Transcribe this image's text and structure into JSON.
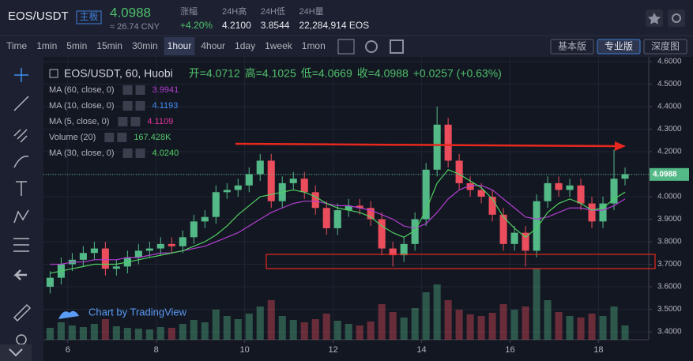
{
  "header": {
    "symbol": "EOS/USDT",
    "badge": "主板",
    "price": "4.0988",
    "cny": "≈ 26.74 CNY",
    "stats": [
      {
        "label": "涨幅",
        "value": "+4.20%"
      },
      {
        "label": "24H高",
        "value": "4.2100"
      },
      {
        "label": "24H低",
        "value": "3.8544"
      },
      {
        "label": "24H量",
        "value": "22,284,914 EOS"
      }
    ]
  },
  "toolbar": {
    "intervals": [
      "Time",
      "1min",
      "5min",
      "15min",
      "30min",
      "1hour",
      "4hour",
      "1day",
      "1week",
      "1mon"
    ],
    "active": "1hour",
    "versions": [
      "基本版",
      "专业版",
      "深度图"
    ],
    "active_version": "专业版"
  },
  "chart_data": {
    "type": "candlestick",
    "title": "EOS/USDT, 60, Huobi",
    "ohlc": [
      "开=4.0712",
      "高=4.1025",
      "低=4.0669",
      "收=4.0988"
    ],
    "change": "+0.0257 (+0.63%)",
    "indicators": [
      {
        "name": "MA (60, close, 0)",
        "value": "3.9941",
        "color": "#b23fd0"
      },
      {
        "name": "MA (10, close, 0)",
        "value": "4.1193",
        "color": "#3f8ef0"
      },
      {
        "name": "MA (5, close, 0)",
        "value": "4.1109",
        "color": "#e0359a"
      },
      {
        "name": "Volume (20)",
        "value": "167.428K",
        "color": "#56c66c"
      },
      {
        "name": "MA (30, close, 0)",
        "value": "4.0240",
        "color": "#4fd060"
      }
    ],
    "watermark": "Chart by TradingView",
    "last_price": "4.0988",
    "xlim": [
      5.45,
      19.1
    ],
    "xticks": [
      6,
      8,
      10,
      12,
      14,
      16,
      18
    ],
    "ylim": [
      3.365,
      4.621
    ],
    "yticks": [
      {
        "value": 4.6,
        "label": "4.6000"
      },
      {
        "value": 4.5,
        "label": "4.5000"
      },
      {
        "value": 4.4,
        "label": "4.4000"
      },
      {
        "value": 4.3,
        "label": "4.3000"
      },
      {
        "value": 4.2,
        "label": "4.2000"
      },
      {
        "value": 4.1,
        "label": "4.1000"
      },
      {
        "value": 4.0,
        "label": "4.0000"
      },
      {
        "value": 3.9,
        "label": "3.9000"
      },
      {
        "value": 3.8,
        "label": "3.8000"
      },
      {
        "value": 3.7,
        "label": "3.7000"
      },
      {
        "value": 3.6,
        "label": "3.6000"
      },
      {
        "value": 3.5,
        "label": "3.5000"
      },
      {
        "value": 3.4,
        "label": "3.4000"
      }
    ],
    "up_color": "#53b987",
    "down_color": "#eb4d5c",
    "x": [
      5.6,
      5.85,
      6.1,
      6.35,
      6.6,
      6.85,
      7.1,
      7.35,
      7.6,
      7.85,
      8.1,
      8.35,
      8.6,
      8.85,
      9.1,
      9.35,
      9.6,
      9.85,
      10.1,
      10.35,
      10.6,
      10.85,
      11.1,
      11.35,
      11.6,
      11.85,
      12.1,
      12.35,
      12.6,
      12.85,
      13.1,
      13.35,
      13.6,
      13.85,
      14.1,
      14.35,
      14.6,
      14.85,
      15.1,
      15.35,
      15.6,
      15.85,
      16.1,
      16.35,
      16.6,
      16.85,
      17.1,
      17.35,
      17.6,
      17.85,
      18.1,
      18.35,
      18.6
    ],
    "open": [
      3.6,
      3.64,
      3.7,
      3.72,
      3.75,
      3.77,
      3.68,
      3.69,
      3.73,
      3.76,
      3.77,
      3.79,
      3.78,
      3.82,
      3.89,
      3.91,
      4.02,
      4.03,
      4.05,
      4.1,
      4.16,
      3.98,
      4.06,
      4.08,
      4.02,
      3.95,
      3.86,
      3.94,
      3.96,
      3.95,
      3.9,
      3.77,
      3.74,
      3.79,
      3.9,
      4.12,
      4.32,
      4.16,
      4.06,
      4.03,
      4.0,
      3.92,
      3.79,
      3.84,
      3.76,
      3.98,
      4.06,
      4.03,
      4.05,
      3.97,
      3.89,
      3.97,
      4.08
    ],
    "high": [
      3.67,
      3.73,
      3.75,
      3.78,
      3.8,
      3.8,
      3.72,
      3.76,
      3.79,
      3.8,
      3.82,
      3.82,
      3.85,
      3.92,
      3.94,
      4.05,
      4.06,
      4.08,
      4.13,
      4.19,
      4.19,
      4.09,
      4.11,
      4.11,
      4.05,
      3.98,
      3.97,
      3.99,
      3.99,
      3.98,
      3.93,
      3.8,
      3.82,
      3.93,
      4.15,
      4.4,
      4.35,
      4.19,
      4.09,
      4.06,
      4.03,
      3.95,
      3.87,
      3.87,
      4.01,
      4.09,
      4.09,
      4.08,
      4.08,
      4.0,
      4.0,
      4.21,
      4.13
    ],
    "low": [
      3.57,
      3.61,
      3.67,
      3.69,
      3.72,
      3.65,
      3.65,
      3.66,
      3.7,
      3.73,
      3.74,
      3.75,
      3.75,
      3.79,
      3.86,
      3.88,
      3.99,
      4.0,
      4.02,
      4.07,
      3.95,
      3.95,
      4.03,
      3.99,
      3.92,
      3.83,
      3.83,
      3.91,
      3.92,
      3.87,
      3.74,
      3.69,
      3.71,
      3.76,
      3.87,
      4.09,
      4.13,
      4.03,
      4.0,
      3.97,
      3.89,
      3.76,
      3.76,
      3.69,
      3.73,
      3.95,
      4.0,
      4.0,
      3.94,
      3.86,
      3.86,
      3.94,
      4.05
    ],
    "close": [
      3.64,
      3.7,
      3.72,
      3.75,
      3.77,
      3.68,
      3.69,
      3.73,
      3.76,
      3.77,
      3.79,
      3.78,
      3.82,
      3.89,
      3.91,
      4.02,
      4.03,
      4.05,
      4.1,
      4.16,
      3.98,
      4.06,
      4.08,
      4.02,
      3.95,
      3.86,
      3.94,
      3.96,
      3.95,
      3.9,
      3.77,
      3.74,
      3.79,
      3.9,
      4.12,
      4.32,
      4.16,
      4.06,
      4.03,
      4.0,
      3.92,
      3.79,
      3.84,
      3.76,
      3.98,
      4.06,
      4.03,
      4.05,
      3.97,
      3.89,
      3.97,
      4.08,
      4.1
    ],
    "volume": [
      150,
      220,
      180,
      160,
      200,
      260,
      170,
      150,
      140,
      130,
      160,
      150,
      200,
      250,
      220,
      380,
      300,
      260,
      330,
      420,
      500,
      300,
      250,
      220,
      260,
      330,
      240,
      200,
      180,
      230,
      450,
      350,
      280,
      400,
      600,
      700,
      500,
      380,
      320,
      300,
      340,
      450,
      380,
      420,
      900,
      500,
      350,
      300,
      280,
      330,
      300,
      420,
      180
    ],
    "series": [
      {
        "name": "MA (60, close, 0)",
        "color": "#b23fd0",
        "values": [
          3.7,
          3.7,
          3.71,
          3.71,
          3.72,
          3.72,
          3.72,
          3.73,
          3.73,
          3.74,
          3.75,
          3.75,
          3.76,
          3.77,
          3.78,
          3.8,
          3.82,
          3.84,
          3.87,
          3.9,
          3.93,
          3.95,
          3.97,
          3.98,
          3.98,
          3.97,
          3.96,
          3.96,
          3.95,
          3.94,
          3.92,
          3.9,
          3.87,
          3.86,
          3.88,
          3.93,
          3.99,
          4.03,
          4.05,
          4.05,
          4.03,
          3.99,
          3.95,
          3.91,
          3.9,
          3.91,
          3.93,
          3.95,
          3.95,
          3.94,
          3.94,
          3.96,
          3.99
        ]
      },
      {
        "name": "MA (30, close, 0)",
        "color": "#4fd060",
        "values": [
          3.66,
          3.67,
          3.68,
          3.69,
          3.7,
          3.7,
          3.7,
          3.71,
          3.72,
          3.73,
          3.74,
          3.75,
          3.76,
          3.78,
          3.8,
          3.83,
          3.87,
          3.92,
          3.96,
          4.0,
          4.01,
          4.02,
          4.03,
          4.02,
          4.0,
          3.97,
          3.95,
          3.94,
          3.93,
          3.91,
          3.87,
          3.84,
          3.82,
          3.85,
          3.94,
          4.06,
          4.12,
          4.1,
          4.07,
          4.04,
          3.99,
          3.91,
          3.86,
          3.82,
          3.86,
          3.93,
          3.97,
          3.99,
          3.97,
          3.94,
          3.95,
          3.99,
          4.02
        ]
      }
    ]
  }
}
